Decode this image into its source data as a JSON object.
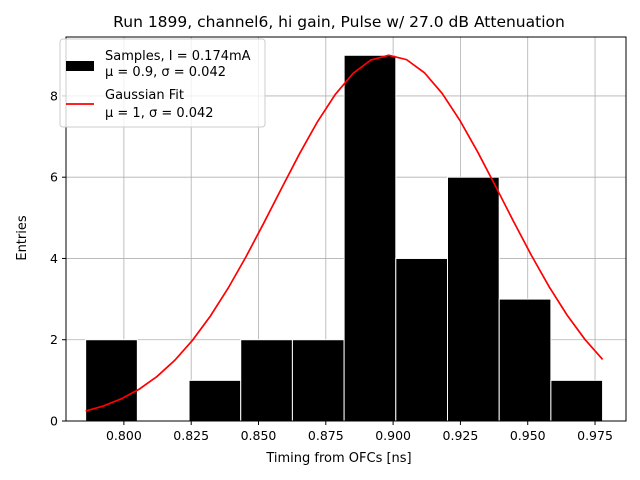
{
  "chart_data": {
    "type": "bar",
    "title": "Run 1899, channel6, hi gain, Pulse w/ 27.0 dB Attenuation",
    "xlabel": "Timing from OFCs [ns]",
    "ylabel": "Entries",
    "xlim": [
      0.7785,
      0.9865
    ],
    "ylim": [
      0,
      9.45
    ],
    "xticks": [
      0.8,
      0.825,
      0.85,
      0.875,
      0.9,
      0.925,
      0.95,
      0.975
    ],
    "xtick_labels": [
      "0.800",
      "0.825",
      "0.850",
      "0.875",
      "0.900",
      "0.925",
      "0.950",
      "0.975"
    ],
    "yticks": [
      0,
      2,
      4,
      6,
      8
    ],
    "ytick_labels": [
      "0",
      "2",
      "4",
      "6",
      "8"
    ],
    "grid": true,
    "legend_position": "top-left",
    "histogram": {
      "name": "Samples, I = 0.174mA",
      "stats": "μ = 0.9, σ = 0.042",
      "color": "#000000",
      "bins": [
        {
          "x0": 0.7858,
          "x1": 0.805,
          "value": 2
        },
        {
          "x0": 0.805,
          "x1": 0.8242,
          "value": 0
        },
        {
          "x0": 0.8242,
          "x1": 0.8434,
          "value": 1
        },
        {
          "x0": 0.8434,
          "x1": 0.8626,
          "value": 2
        },
        {
          "x0": 0.8626,
          "x1": 0.8818,
          "value": 2
        },
        {
          "x0": 0.8818,
          "x1": 0.901,
          "value": 9
        },
        {
          "x0": 0.901,
          "x1": 0.9202,
          "value": 4
        },
        {
          "x0": 0.9202,
          "x1": 0.9394,
          "value": 6
        },
        {
          "x0": 0.9394,
          "x1": 0.9586,
          "value": 3
        },
        {
          "x0": 0.9586,
          "x1": 0.9778,
          "value": 1
        }
      ]
    },
    "fit": {
      "name": "Gaussian Fit",
      "stats": "μ = 1, σ = 0.042",
      "color": "#ff0000",
      "type": "line",
      "amplitude": 9.0,
      "mean": 0.8985,
      "sigma": 0.042,
      "x_start": 0.7858,
      "x_end": 0.9778,
      "num_points": 30
    }
  }
}
